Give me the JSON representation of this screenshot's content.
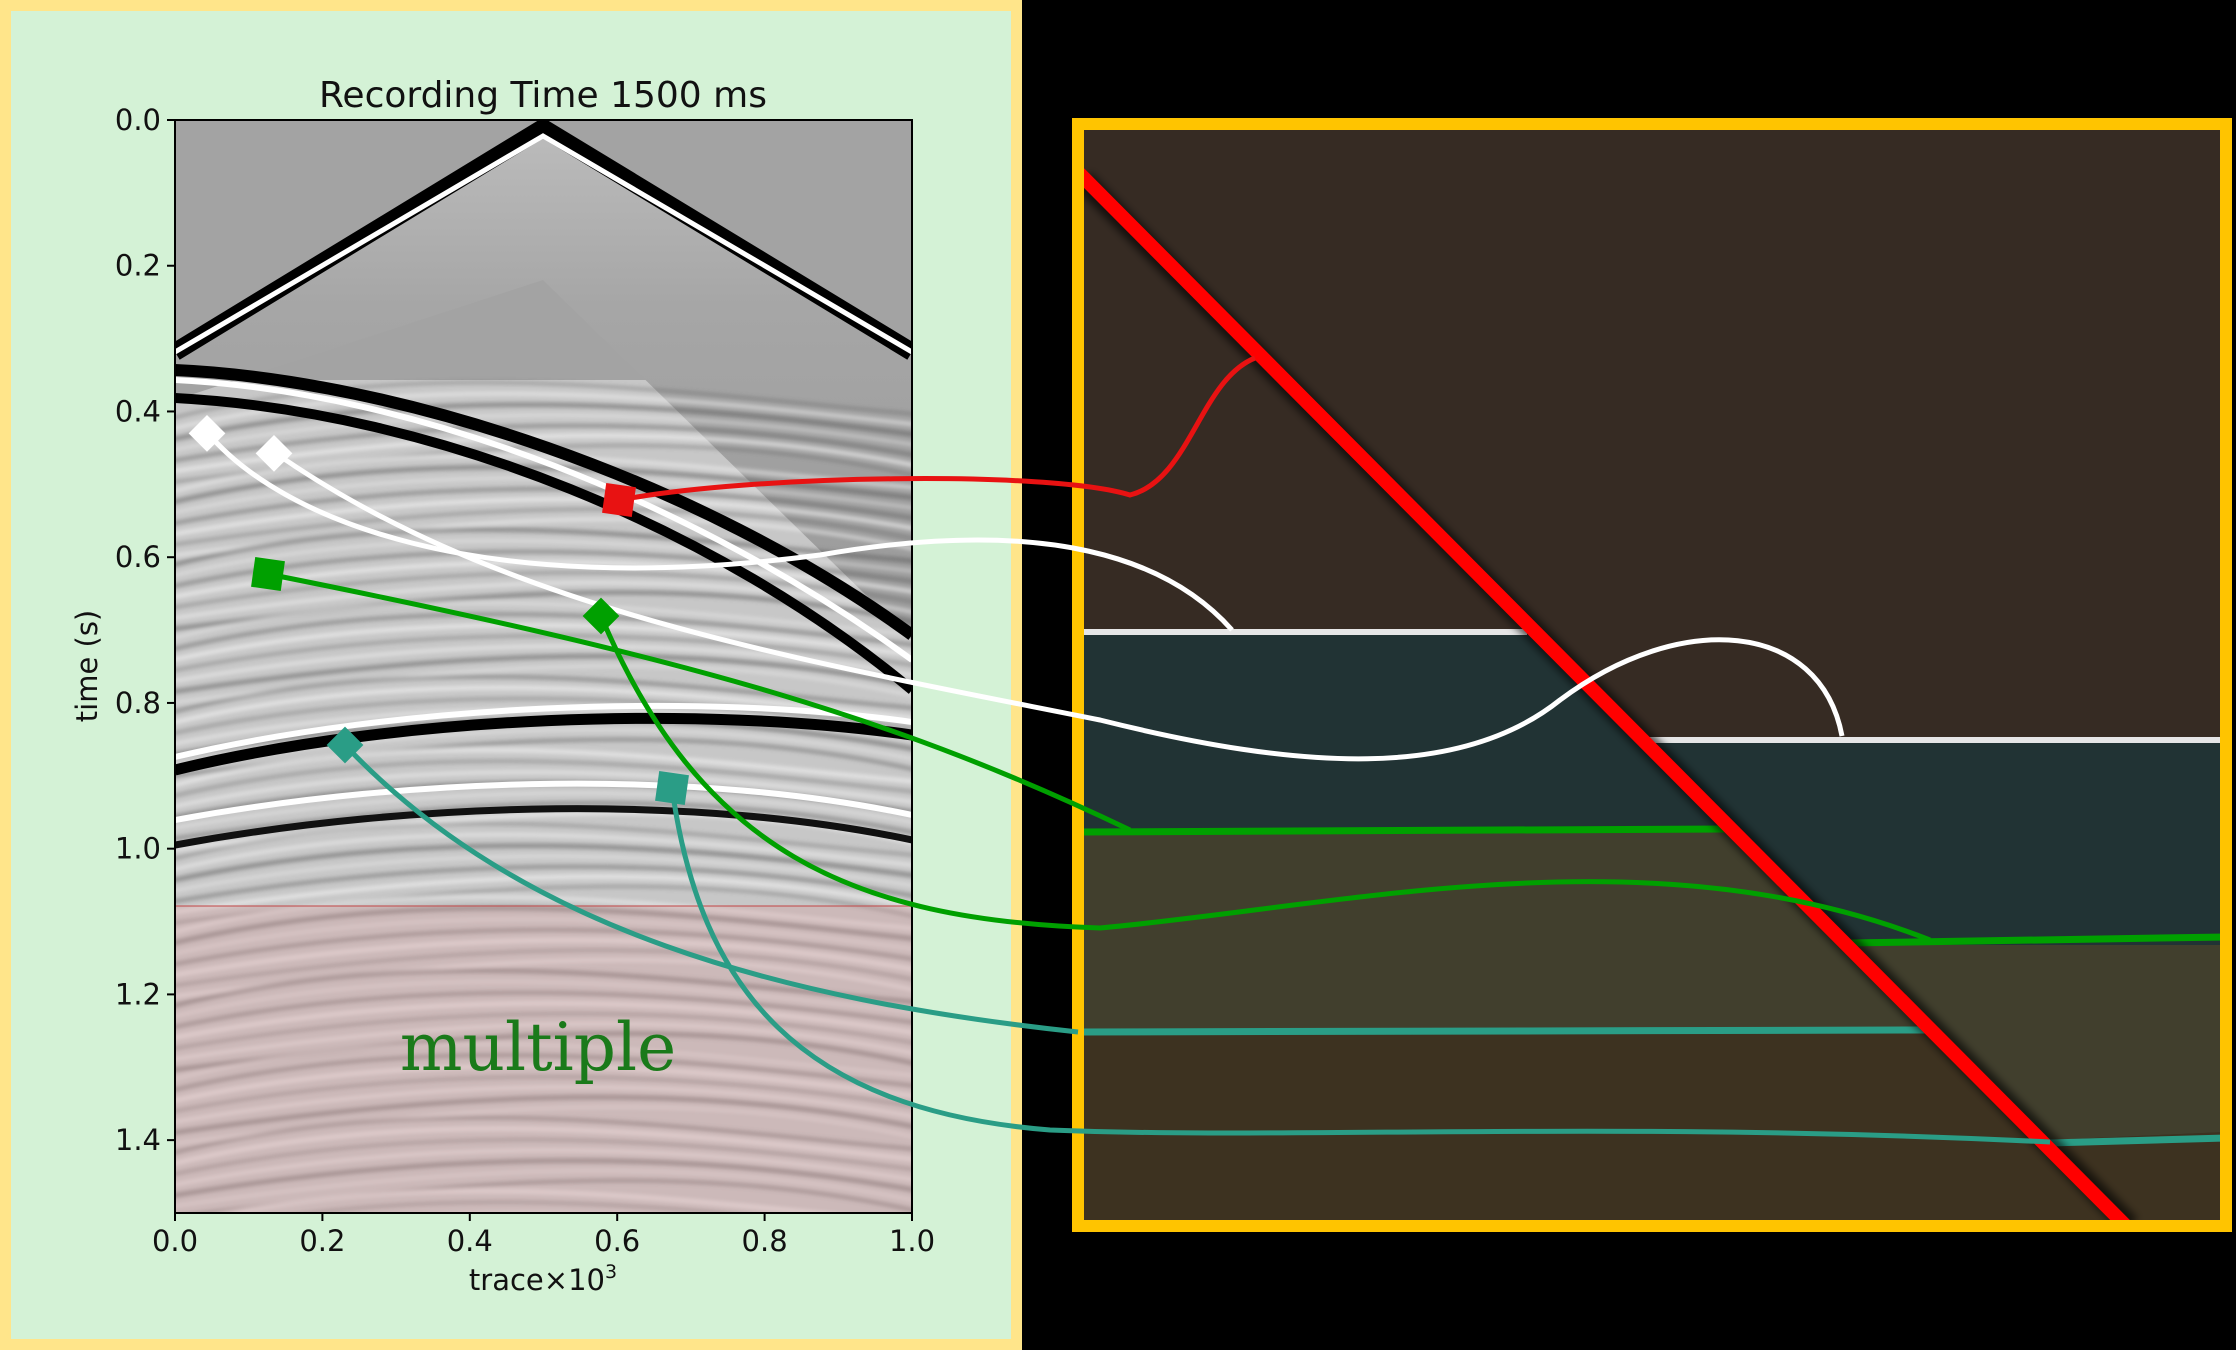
{
  "panel": {
    "title": "Recording Time 1500 ms",
    "ylabel": "time (s)",
    "xlabel": "trace×10",
    "xlabel_exp": "3",
    "xticks": [
      "0.0",
      "0.2",
      "0.4",
      "0.6",
      "0.8",
      "1.0"
    ],
    "yticks": [
      "0.0",
      "0.2",
      "0.4",
      "0.6",
      "0.8",
      "1.0",
      "1.2",
      "1.4"
    ],
    "multiple_label": "multiple"
  },
  "colors": {
    "left_bg": "#d4f2d6",
    "left_border": "#ffe58a",
    "model_border": "#ffc400",
    "fault": "#ff0000",
    "red_event": "#e81212",
    "white_event": "#ffffff",
    "green_event": "#00a000",
    "teal_event": "#2a9d86"
  },
  "chart_data": {
    "type": "seismic-gather",
    "title": "Recording Time 1500 ms",
    "xlabel": "trace×10^3",
    "ylabel": "time (s)",
    "xlim": [
      0.0,
      1.0
    ],
    "ylim": [
      1.5,
      0.0
    ],
    "annotations": [
      {
        "name": "multiple",
        "x_range": [
          0.0,
          1.0
        ],
        "time_range": [
          1.08,
          1.5
        ]
      }
    ],
    "event_markers": [
      {
        "color": "red",
        "shape": "square",
        "x": 0.6,
        "time": 0.52
      },
      {
        "color": "white",
        "shape": "diamond",
        "x": 0.04,
        "time": 0.42
      },
      {
        "color": "white",
        "shape": "diamond",
        "x": 0.14,
        "time": 0.45
      },
      {
        "color": "green",
        "shape": "square",
        "x": 0.13,
        "time": 0.62
      },
      {
        "color": "green",
        "shape": "diamond",
        "x": 0.58,
        "time": 0.68
      },
      {
        "color": "teal",
        "shape": "diamond",
        "x": 0.23,
        "time": 0.85
      },
      {
        "color": "teal",
        "shape": "square",
        "x": 0.68,
        "time": 0.92
      }
    ]
  }
}
